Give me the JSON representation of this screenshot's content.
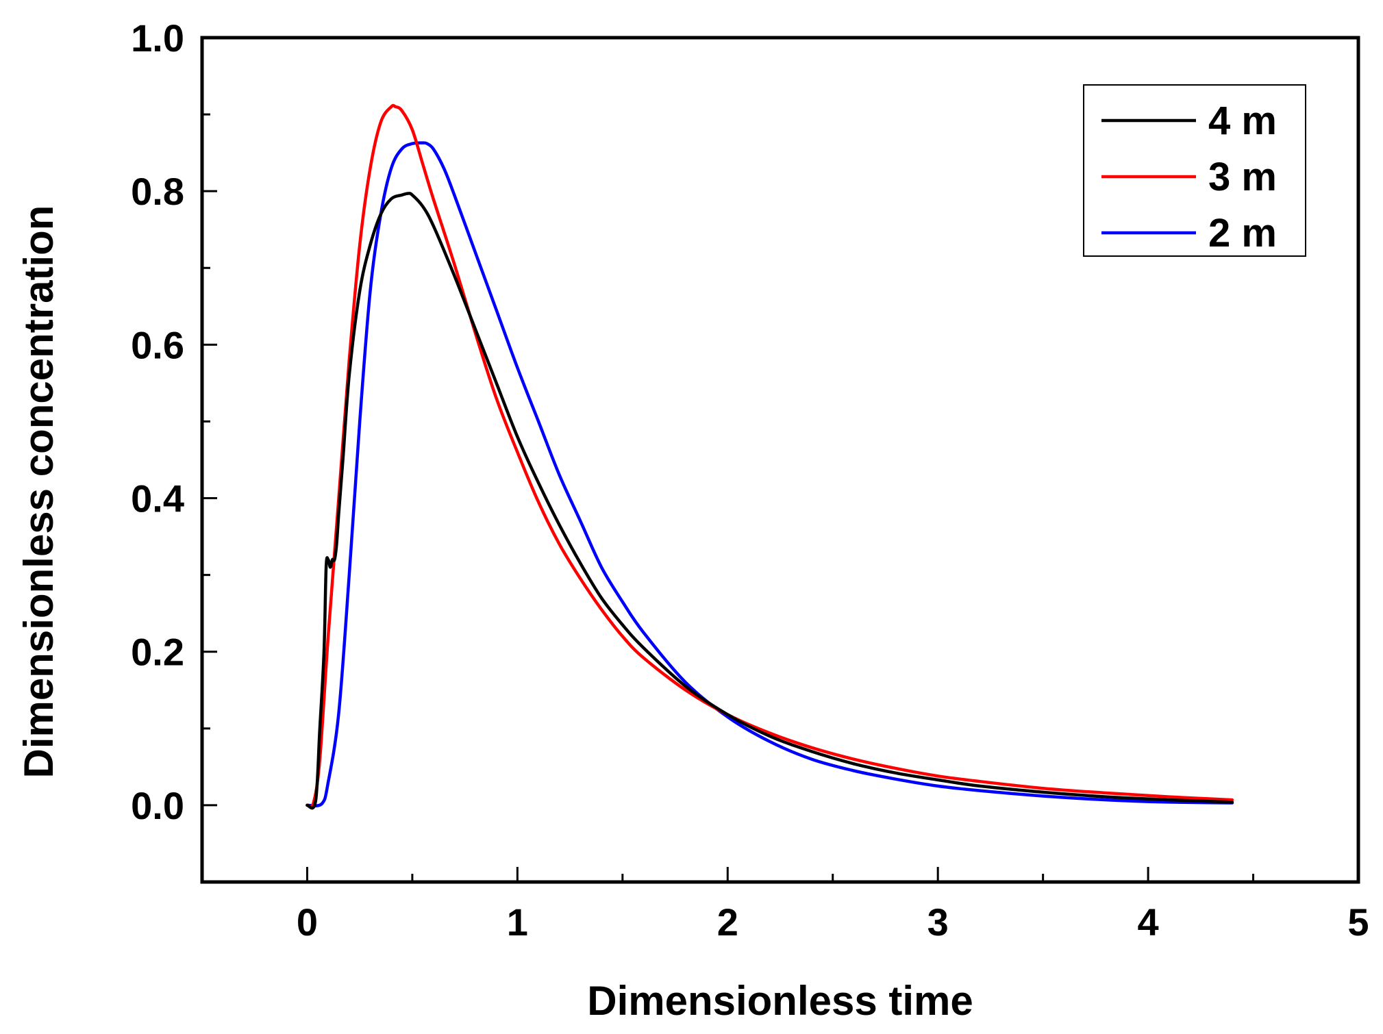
{
  "chart_data": {
    "type": "line",
    "title": "",
    "xlabel": "Dimensionless time",
    "ylabel": "Dimensionless concentration",
    "xlim": [
      -0.5,
      5
    ],
    "ylim": [
      -0.1,
      1.0
    ],
    "xticks": [
      0,
      1,
      2,
      3,
      4,
      5
    ],
    "xtick_labels": [
      "0",
      "1",
      "2",
      "3",
      "4",
      "5"
    ],
    "yticks": [
      0.0,
      0.2,
      0.4,
      0.6,
      0.8,
      1.0
    ],
    "ytick_labels": [
      "0.0",
      "0.2",
      "0.4",
      "0.6",
      "0.8",
      "1.0"
    ],
    "grid": false,
    "legend_position": "top-right",
    "series": [
      {
        "name": "4 m",
        "color": "#000000",
        "x": [
          0,
          0.04,
          0.06,
          0.08,
          0.09,
          0.1,
          0.11,
          0.12,
          0.13,
          0.14,
          0.15,
          0.17,
          0.2,
          0.25,
          0.3,
          0.35,
          0.4,
          0.45,
          0.48,
          0.5,
          0.55,
          0.6,
          0.7,
          0.8,
          0.9,
          1.0,
          1.1,
          1.2,
          1.3,
          1.4,
          1.5,
          1.6,
          1.8,
          2.0,
          2.2,
          2.4,
          2.6,
          2.8,
          3.0,
          3.2,
          3.5,
          3.8,
          4.1,
          4.4
        ],
        "y": [
          0,
          0.005,
          0.1,
          0.2,
          0.31,
          0.32,
          0.31,
          0.32,
          0.32,
          0.34,
          0.38,
          0.45,
          0.56,
          0.67,
          0.73,
          0.77,
          0.79,
          0.795,
          0.797,
          0.795,
          0.78,
          0.755,
          0.69,
          0.62,
          0.55,
          0.48,
          0.42,
          0.365,
          0.315,
          0.27,
          0.235,
          0.205,
          0.155,
          0.118,
          0.09,
          0.07,
          0.054,
          0.042,
          0.033,
          0.025,
          0.017,
          0.011,
          0.007,
          0.004
        ]
      },
      {
        "name": "3 m",
        "color": "#ff0000",
        "x": [
          0,
          0.03,
          0.06,
          0.1,
          0.15,
          0.2,
          0.25,
          0.3,
          0.35,
          0.4,
          0.42,
          0.45,
          0.5,
          0.55,
          0.6,
          0.7,
          0.8,
          0.9,
          1.0,
          1.1,
          1.2,
          1.3,
          1.4,
          1.5,
          1.6,
          1.8,
          2.0,
          2.2,
          2.4,
          2.6,
          2.8,
          3.0,
          3.2,
          3.5,
          3.8,
          4.1,
          4.4
        ],
        "y": [
          0,
          0.003,
          0.06,
          0.22,
          0.4,
          0.58,
          0.73,
          0.83,
          0.89,
          0.91,
          0.91,
          0.905,
          0.88,
          0.835,
          0.79,
          0.705,
          0.615,
          0.53,
          0.46,
          0.395,
          0.34,
          0.295,
          0.255,
          0.22,
          0.192,
          0.15,
          0.118,
          0.094,
          0.075,
          0.06,
          0.048,
          0.038,
          0.031,
          0.022,
          0.016,
          0.011,
          0.007
        ]
      },
      {
        "name": "2 m",
        "color": "#0000ff",
        "x": [
          0,
          0.07,
          0.1,
          0.15,
          0.2,
          0.25,
          0.3,
          0.35,
          0.4,
          0.45,
          0.5,
          0.55,
          0.57,
          0.6,
          0.65,
          0.7,
          0.8,
          0.9,
          1.0,
          1.1,
          1.2,
          1.3,
          1.4,
          1.5,
          1.6,
          1.8,
          2.0,
          2.2,
          2.4,
          2.6,
          2.8,
          3.0,
          3.2,
          3.5,
          3.8,
          4.1,
          4.4
        ],
        "y": [
          0,
          0.002,
          0.03,
          0.12,
          0.3,
          0.5,
          0.67,
          0.77,
          0.83,
          0.855,
          0.862,
          0.863,
          0.862,
          0.855,
          0.83,
          0.795,
          0.72,
          0.645,
          0.57,
          0.5,
          0.43,
          0.37,
          0.31,
          0.265,
          0.225,
          0.16,
          0.115,
          0.083,
          0.06,
          0.045,
          0.034,
          0.025,
          0.019,
          0.012,
          0.007,
          0.004,
          0.003
        ]
      }
    ]
  }
}
